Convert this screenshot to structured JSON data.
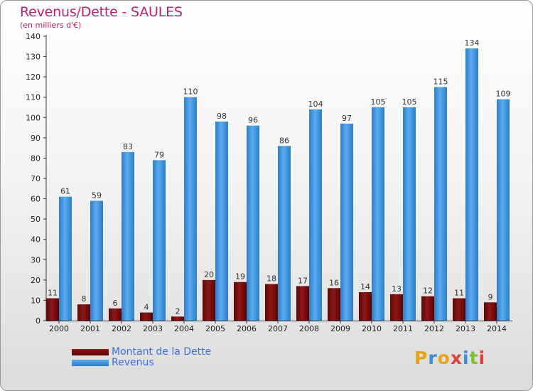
{
  "title": "Revenus/Dette - SAULES",
  "subtitle": "(en milliers d'€)",
  "brand": "Proxiti",
  "colors": {
    "title": "#c0206e",
    "dette": "#7a0c0c",
    "revenus": "#3a8fd8",
    "legend_text": "#3d6fe0"
  },
  "chart_data": {
    "type": "bar",
    "categories": [
      "2000",
      "2001",
      "2002",
      "2003",
      "2004",
      "2005",
      "2006",
      "2007",
      "2008",
      "2009",
      "2010",
      "2011",
      "2012",
      "2013",
      "2014"
    ],
    "series": [
      {
        "name": "Montant de la Dette",
        "values": [
          11,
          8,
          6,
          4,
          2,
          20,
          19,
          18,
          17,
          16,
          14,
          13,
          12,
          11,
          9
        ]
      },
      {
        "name": "Revenus",
        "values": [
          61,
          59,
          83,
          79,
          110,
          98,
          96,
          86,
          104,
          97,
          105,
          105,
          115,
          134,
          109
        ]
      }
    ],
    "ylim": [
      0,
      140
    ],
    "yticks": [
      0,
      10,
      20,
      30,
      40,
      50,
      60,
      70,
      80,
      90,
      100,
      110,
      120,
      130,
      140
    ],
    "grid": false,
    "legend": "bottom-left"
  }
}
